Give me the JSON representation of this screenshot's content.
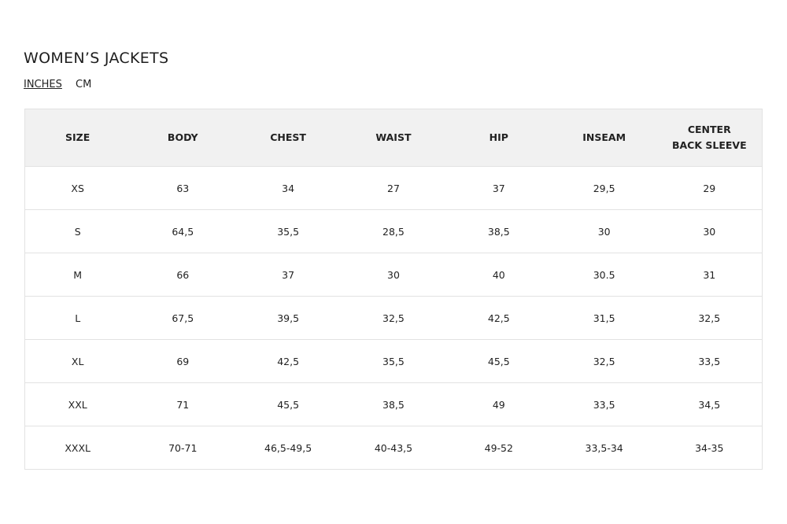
{
  "title": "WOMEN’S JACKETS",
  "units": {
    "inches": "INCHES",
    "cm": "CM",
    "selected": "INCHES"
  },
  "table": {
    "headers": [
      "SIZE",
      "BODY",
      "CHEST",
      "WAIST",
      "HIP",
      "INSEAM",
      "CENTER BACK SLEEVE"
    ],
    "rows": [
      [
        "XS",
        "63",
        "34",
        "27",
        "37",
        "29,5",
        "29"
      ],
      [
        "S",
        "64,5",
        "35,5",
        "28,5",
        "38,5",
        "30",
        "30"
      ],
      [
        "M",
        "66",
        "37",
        "30",
        "40",
        "30.5",
        "31"
      ],
      [
        "L",
        "67,5",
        "39,5",
        "32,5",
        "42,5",
        "31,5",
        "32,5"
      ],
      [
        "XL",
        "69",
        "42,5",
        "35,5",
        "45,5",
        "32,5",
        "33,5"
      ],
      [
        "XXL",
        "71",
        "45,5",
        "38,5",
        "49",
        "33,5",
        "34,5"
      ],
      [
        "XXXL",
        "70-71",
        "46,5-49,5",
        "40-43,5",
        "49-52",
        "33,5-34",
        "34-35"
      ]
    ]
  }
}
